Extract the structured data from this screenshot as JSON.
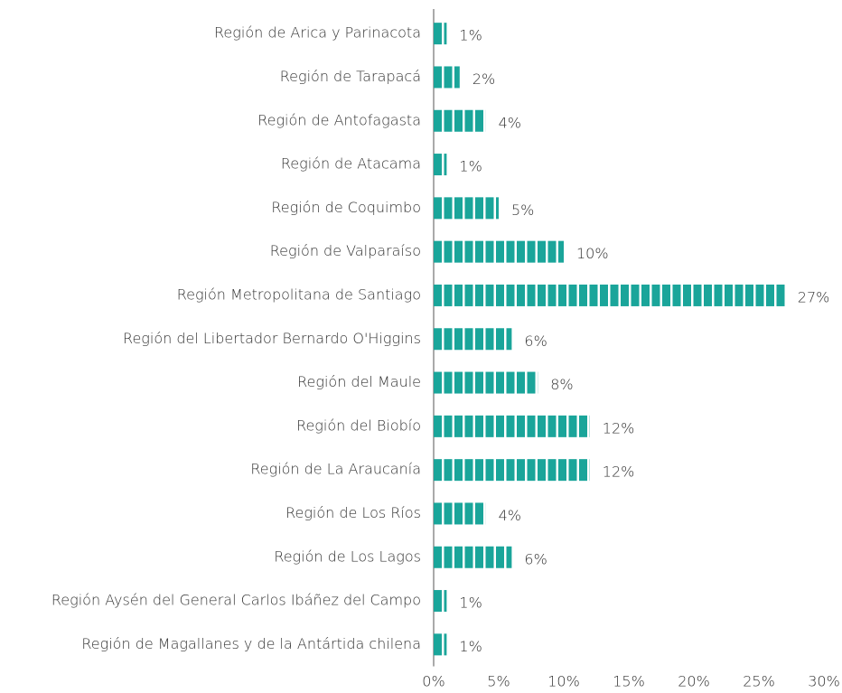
{
  "chart_data": {
    "type": "bar",
    "orientation": "horizontal",
    "categories": [
      "Región de Arica y Parinacota",
      "Región de Tarapacá",
      "Región de Antofagasta",
      "Región de Atacama",
      "Región de Coquimbo",
      "Región de Valparaíso",
      "Región Metropolitana de Santiago",
      "Región del Libertador Bernardo O'Higgins",
      "Región del Maule",
      "Región del Biobío",
      "Región de La Araucanía",
      "Región de Los Ríos",
      "Región de Los Lagos",
      "Región Aysén del General Carlos Ibáñez del Campo",
      "Región de Magallanes y de la Antártida chilena"
    ],
    "values": [
      1,
      2,
      4,
      1,
      5,
      10,
      27,
      6,
      8,
      12,
      12,
      4,
      6,
      1,
      1
    ],
    "value_labels": [
      "1%",
      "2%",
      "4%",
      "1%",
      "5%",
      "10%",
      "27%",
      "6%",
      "8%",
      "12%",
      "12%",
      "4%",
      "6%",
      "1%",
      "1%"
    ],
    "color": "#1aa59a",
    "xlim": [
      0,
      30
    ],
    "xticks": [
      {
        "value": 0,
        "label": "0%"
      },
      {
        "value": 5,
        "label": "5%"
      },
      {
        "value": 10,
        "label": "10%"
      },
      {
        "value": 15,
        "label": "15%"
      },
      {
        "value": 20,
        "label": "20%"
      },
      {
        "value": 25,
        "label": "25%"
      },
      {
        "value": 30,
        "label": "30%"
      }
    ],
    "grid": false
  }
}
